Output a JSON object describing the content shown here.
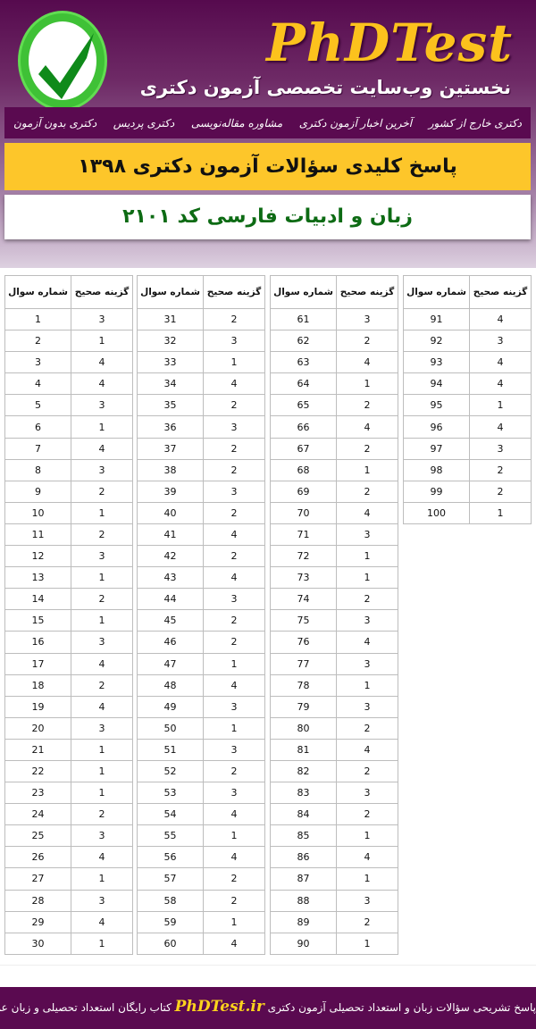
{
  "header": {
    "brand": "PhDTest",
    "tagline": "نخستین وب‌سایت تخصصی آزمون دکتری",
    "logo_icon": "checkmark-icon"
  },
  "nav": {
    "items": [
      "دکتری بدون آزمون",
      "دکتری پردیس",
      "مشاوره مقاله‌نویسی",
      "آخرین اخبار آزمون دکتری",
      "دکتری خارج از کشور"
    ]
  },
  "title": "پاسخ کلیدی سؤالات آزمون دکتری ۱۳۹۸",
  "subtitle": "زبان و ادبیات فارسی کد ۲۱۰۱",
  "table": {
    "headers": {
      "question": "شماره سوال",
      "answer": "گزینه صحیح"
    },
    "answers": [
      3,
      1,
      4,
      4,
      3,
      1,
      4,
      3,
      2,
      1,
      2,
      3,
      1,
      2,
      1,
      3,
      4,
      2,
      4,
      3,
      1,
      1,
      1,
      2,
      3,
      4,
      1,
      3,
      4,
      1,
      2,
      3,
      1,
      4,
      2,
      3,
      2,
      2,
      3,
      2,
      4,
      2,
      4,
      3,
      2,
      2,
      1,
      4,
      3,
      1,
      3,
      2,
      3,
      4,
      1,
      4,
      2,
      2,
      1,
      4,
      3,
      2,
      4,
      1,
      2,
      4,
      2,
      1,
      2,
      4,
      3,
      1,
      1,
      2,
      3,
      4,
      3,
      1,
      3,
      2,
      4,
      2,
      3,
      2,
      1,
      4,
      1,
      3,
      2,
      1,
      4,
      3,
      4,
      4,
      1,
      4,
      3,
      2,
      2,
      1
    ]
  },
  "footer": {
    "before": "پاسخ تشریحی سؤالات زبان و استعداد تحصیلی آزمون دکتری",
    "link": "PhDTest.ir",
    "after": "کتاب رایگان استعداد تحصیلی و زبان عمومی"
  },
  "colors": {
    "purple": "#5a0a50",
    "yellow": "#fdc62a",
    "green": "#0d6b14"
  }
}
